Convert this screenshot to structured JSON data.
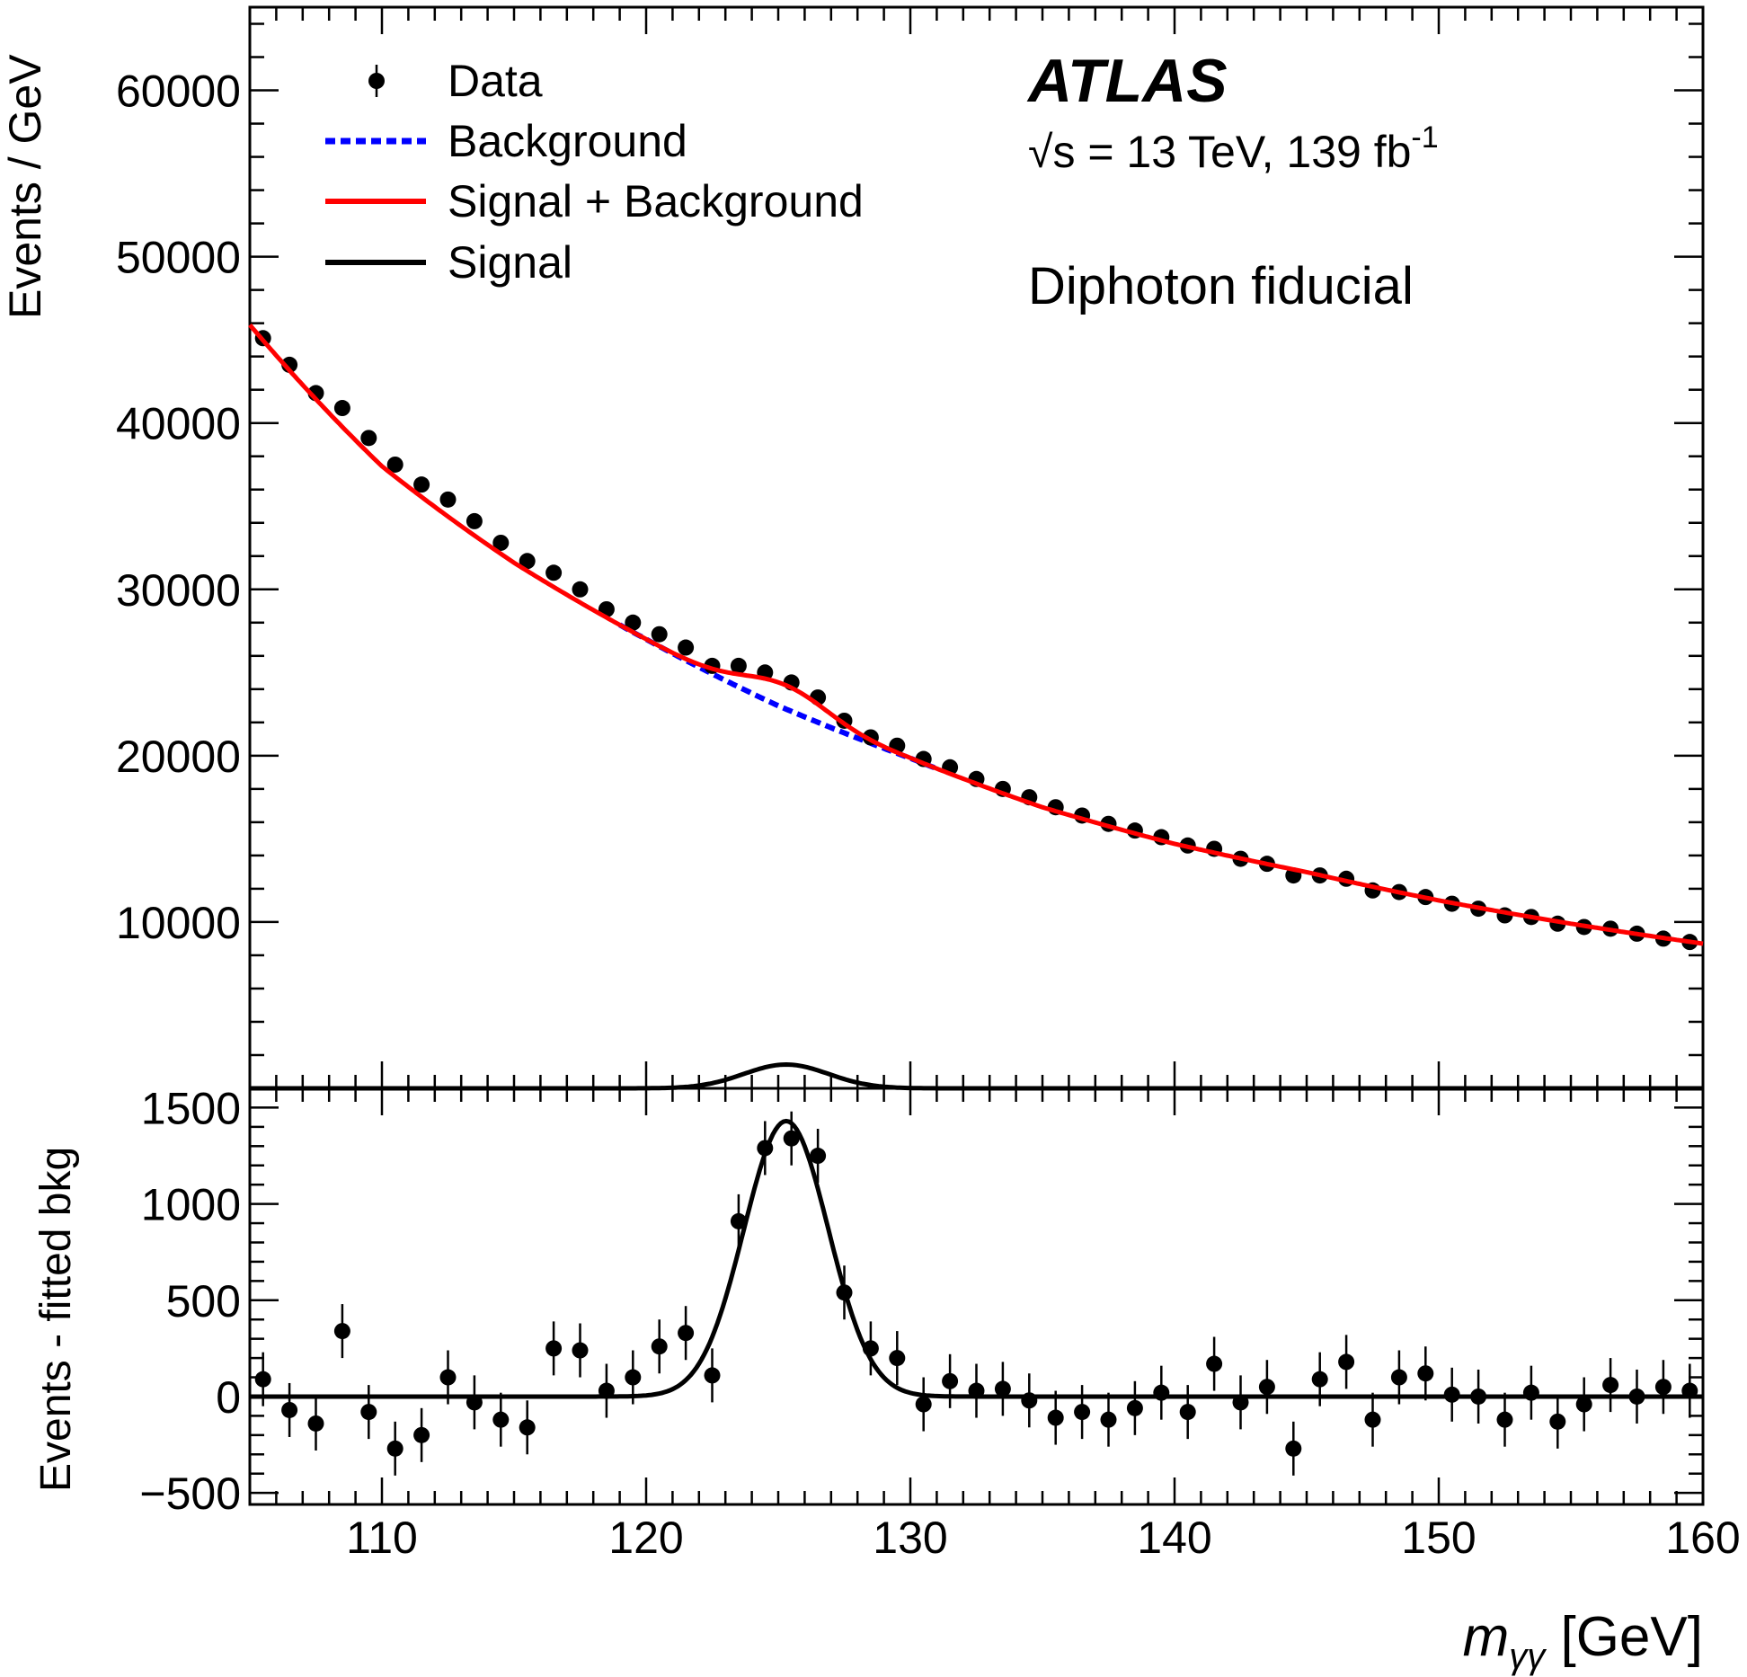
{
  "chart_data": [
    {
      "type": "scatter",
      "panel": "main",
      "ylabel": "Events / GeV",
      "xlim": [
        105,
        160
      ],
      "ylim": [
        0,
        65000
      ],
      "ytick_labels": [
        "10000",
        "20000",
        "30000",
        "40000",
        "50000",
        "60000"
      ],
      "yticks": [
        10000,
        20000,
        30000,
        40000,
        50000,
        60000
      ],
      "annotations": {
        "experiment": "ATLAS",
        "energy_prefix": "√s",
        "energy_text": " = 13 TeV, 139 fb",
        "energy_sup": "-1",
        "region": "Diphoton fiducial"
      },
      "legend": [
        {
          "label": "Data",
          "style": "marker"
        },
        {
          "label": "Background",
          "style": "dashed",
          "color": "#0000ff"
        },
        {
          "label": "Signal + Background",
          "style": "solid",
          "color": "#ff0000"
        },
        {
          "label": "Signal",
          "style": "solid",
          "color": "#000000"
        }
      ],
      "legend_position": "top-left",
      "x": [
        105.5,
        106.5,
        107.5,
        108.5,
        109.5,
        110.5,
        111.5,
        112.5,
        113.5,
        114.5,
        115.5,
        116.5,
        117.5,
        118.5,
        119.5,
        120.5,
        121.5,
        122.5,
        123.5,
        124.5,
        125.5,
        126.5,
        127.5,
        128.5,
        129.5,
        130.5,
        131.5,
        132.5,
        133.5,
        134.5,
        135.5,
        136.5,
        137.5,
        138.5,
        139.5,
        140.5,
        141.5,
        142.5,
        143.5,
        144.5,
        145.5,
        146.5,
        147.5,
        148.5,
        149.5,
        150.5,
        151.5,
        152.5,
        153.5,
        154.5,
        155.5,
        156.5,
        157.5,
        158.5,
        159.5
      ],
      "series": [
        {
          "name": "Data",
          "values": [
            45100,
            43500,
            41800,
            40900,
            39100,
            37500,
            36300,
            35400,
            34100,
            32800,
            31700,
            31000,
            30000,
            28800,
            28000,
            27300,
            26500,
            25400,
            25400,
            25000,
            24400,
            23500,
            22100,
            21100,
            20600,
            19800,
            19300,
            18600,
            18000,
            17500,
            16900,
            16400,
            15900,
            15500,
            15100,
            14600,
            14400,
            13800,
            13500,
            12800,
            12800,
            12600,
            11900,
            11800,
            11500,
            11100,
            10800,
            10400,
            10300,
            9900,
            9700,
            9600,
            9300,
            9000,
            8800
          ]
        }
      ],
      "background_model": {
        "x": [
          105,
          110,
          115,
          120,
          125,
          130,
          135,
          140,
          145,
          150,
          155,
          160
        ],
        "y": [
          45900,
          37400,
          31600,
          27000,
          23000,
          19850,
          16900,
          14700,
          13000,
          11300,
          9900,
          8700
        ]
      },
      "signal_model": {
        "mean": 125.3,
        "sigma": 1.6,
        "peak": 1430
      }
    },
    {
      "type": "scatter",
      "panel": "residual",
      "ylabel": "Events - fitted bkg",
      "xlabel_main": "m",
      "xlabel_sub": "γγ",
      "xlabel_unit": " [GeV]",
      "xlim": [
        105,
        160
      ],
      "ylim": [
        -560,
        1600
      ],
      "xticks": [
        110,
        120,
        130,
        140,
        150,
        160
      ],
      "xtick_labels": [
        "110",
        "120",
        "130",
        "140",
        "150",
        "160"
      ],
      "yticks": [
        -500,
        0,
        500,
        1000,
        1500
      ],
      "ytick_labels": [
        "−500",
        "0",
        "500",
        "1000",
        "1500"
      ],
      "x": [
        105.5,
        106.5,
        107.5,
        108.5,
        109.5,
        110.5,
        111.5,
        112.5,
        113.5,
        114.5,
        115.5,
        116.5,
        117.5,
        118.5,
        119.5,
        120.5,
        121.5,
        122.5,
        123.5,
        124.5,
        125.5,
        126.5,
        127.5,
        128.5,
        129.5,
        130.5,
        131.5,
        132.5,
        133.5,
        134.5,
        135.5,
        136.5,
        137.5,
        138.5,
        139.5,
        140.5,
        141.5,
        142.5,
        143.5,
        144.5,
        145.5,
        146.5,
        147.5,
        148.5,
        149.5,
        150.5,
        151.5,
        152.5,
        153.5,
        154.5,
        155.5,
        156.5,
        157.5,
        158.5,
        159.5
      ],
      "series": [
        {
          "name": "Data",
          "values": [
            90,
            -70,
            -140,
            340,
            -80,
            -270,
            -200,
            100,
            -30,
            -120,
            -160,
            250,
            240,
            30,
            100,
            260,
            330,
            110,
            910,
            1290,
            1340,
            1250,
            540,
            250,
            200,
            -40,
            80,
            30,
            40,
            -20,
            -110,
            -80,
            -120,
            -60,
            20,
            -80,
            170,
            -30,
            50,
            -270,
            90,
            180,
            -120,
            100,
            120,
            10,
            0,
            -120,
            20,
            -130,
            -40,
            60,
            0,
            50,
            30
          ]
        }
      ],
      "errors": 140,
      "signal_model": {
        "mean": 125.3,
        "sigma": 1.6,
        "peak": 1430
      }
    }
  ]
}
